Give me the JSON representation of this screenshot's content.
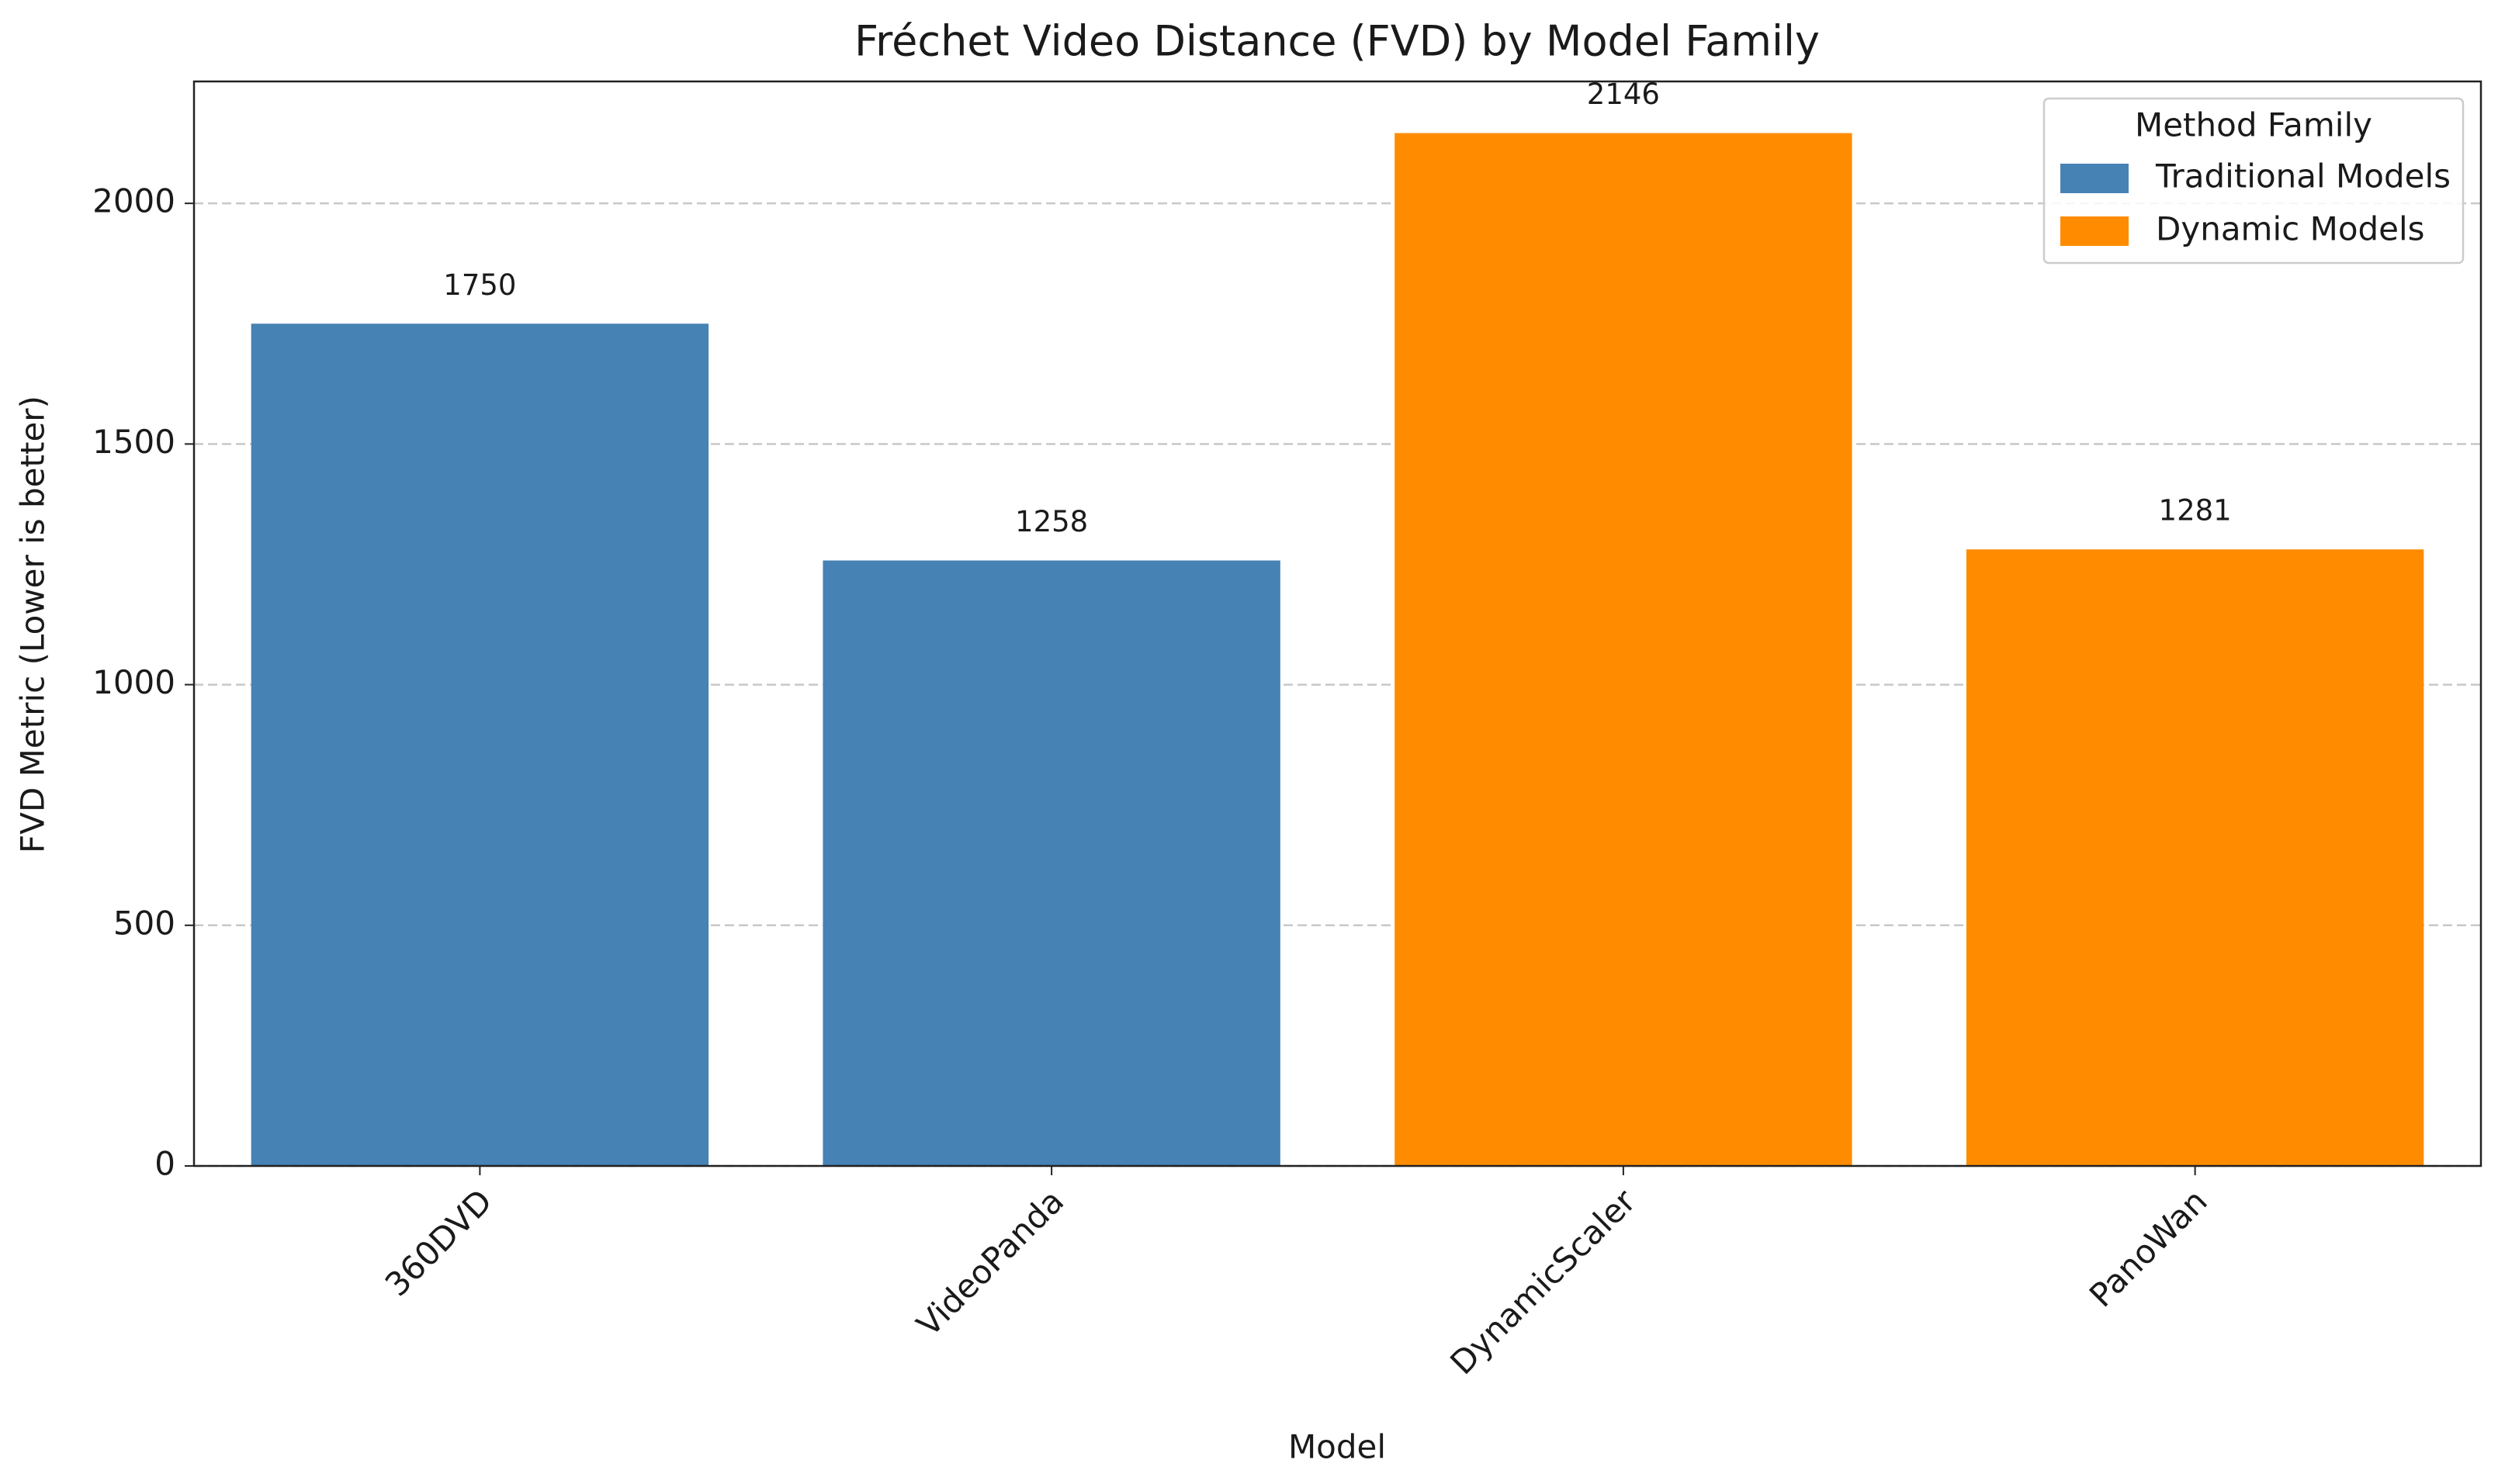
{
  "chart_data": {
    "type": "bar",
    "title": "Fréchet Video Distance (FVD) by Model Family",
    "x_label": "Model",
    "y_label": "FVD Metric (Lower is better)",
    "categories": [
      "360DVD",
      "VideoPanda",
      "DynamicScaler",
      "PanoWan"
    ],
    "series": [
      {
        "name": "Traditional Models",
        "color": "#4682b4",
        "values": [
          1750,
          1258,
          null,
          null
        ]
      },
      {
        "name": "Dynamic Models",
        "color": "#ff8c00",
        "values": [
          null,
          null,
          2146,
          1281
        ]
      }
    ],
    "ylim": [
      0,
      2253.3
    ],
    "yticks": [
      0,
      500,
      1000,
      1500,
      2000
    ],
    "grid": true,
    "legend_title": "Method Family",
    "legend": "upper right"
  }
}
